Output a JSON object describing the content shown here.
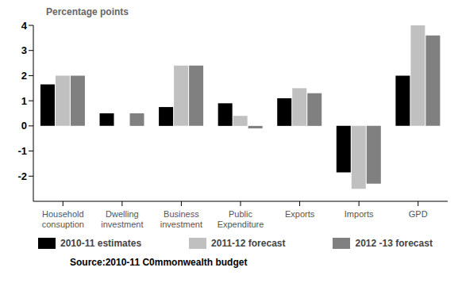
{
  "chart_data": {
    "type": "bar",
    "y_label": "Percentage points",
    "source": "Source:2010-11 C0mmonwealth budget",
    "categories": [
      "Household consuption",
      "Dwelling investment",
      "Business investment",
      "Public Expenditure",
      "Exports",
      "Imports",
      "GPD"
    ],
    "series": [
      {
        "name": "2010-11 estimates",
        "color": "#000000",
        "values": [
          1.65,
          0.5,
          0.75,
          0.9,
          1.1,
          -1.85,
          2.0
        ]
      },
      {
        "name": "2011-12 forecast",
        "color": "#c0c0c0",
        "values": [
          2.0,
          0,
          2.4,
          0.4,
          1.5,
          -2.5,
          4.0
        ]
      },
      {
        "name": "2012 -13 forecast",
        "color": "#808080",
        "values": [
          2.0,
          0.5,
          2.4,
          -0.1,
          1.3,
          -2.3,
          3.6
        ]
      }
    ],
    "ylim": [
      -3,
      4
    ],
    "yticks": [
      -2,
      -1,
      0,
      1,
      2,
      3,
      4
    ],
    "grid": false
  }
}
